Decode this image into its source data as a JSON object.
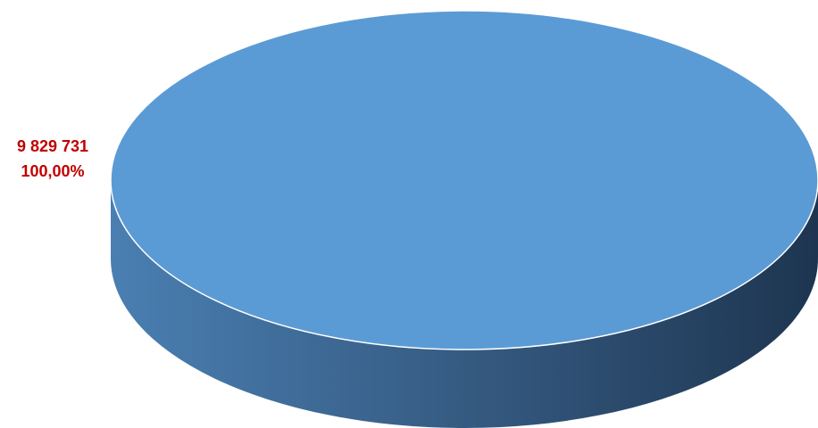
{
  "chart_data": {
    "type": "pie",
    "style": "3d",
    "slices": [
      {
        "value": 9829731,
        "value_label": "9 829 731",
        "percent": 100.0,
        "percent_label": "100,00%",
        "color": "#5b9bd5"
      }
    ],
    "label_color": "#c00000",
    "legend": "none",
    "title": ""
  }
}
